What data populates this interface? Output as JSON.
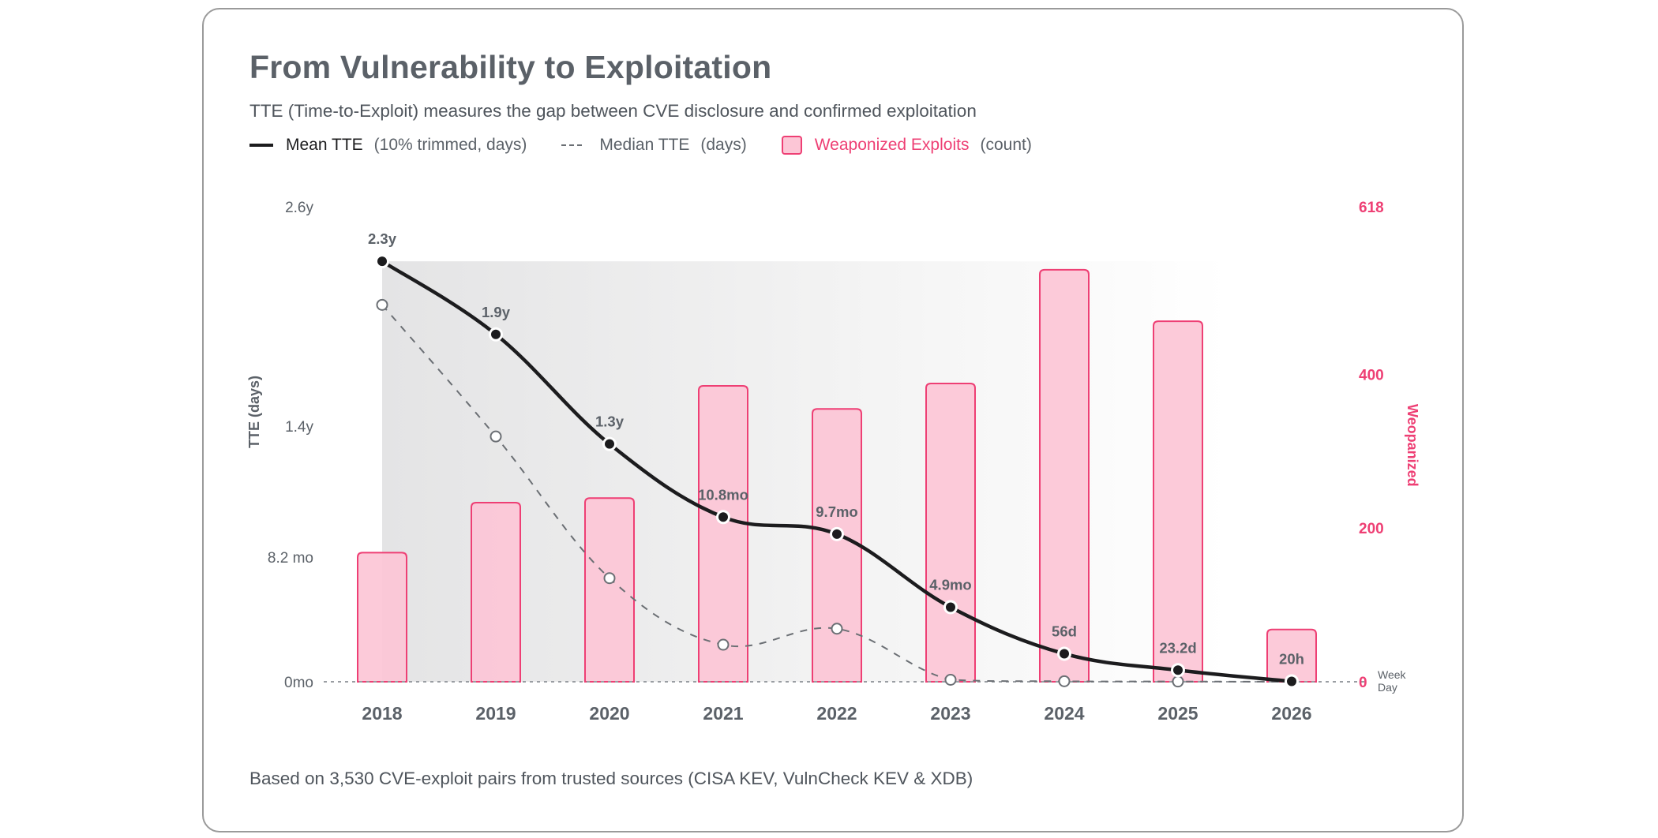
{
  "header": {
    "title": "From Vulnerability to Exploitation",
    "subtitle": "TTE (Time-to-Exploit) measures the gap between CVE disclosure and confirmed exploitation"
  },
  "legend": {
    "mean": {
      "name": "Mean TTE",
      "unit": "(10% trimmed, days)"
    },
    "median": {
      "name": "Median TTE",
      "unit": "(days)"
    },
    "exploits": {
      "name": "Weaponized Exploits",
      "unit": "(count)"
    }
  },
  "footer": "Based on 3,530 CVE-exploit pairs from trusted sources (CISA KEV, VulnCheck KEV & XDB)",
  "colors": {
    "mean_line": "#1c1c1e",
    "median_line": "#6b6f74",
    "bar_fill": "#fcc6d6",
    "bar_stroke": "#ee3f74",
    "accent_pink": "#ee3f74",
    "text_gray": "#5b6168"
  },
  "chart_data": {
    "type": "bar",
    "title": "From Vulnerability to Exploitation",
    "subtitle": "TTE (Time-to-Exploit) measures the gap between CVE disclosure and confirmed exploitation",
    "categories": [
      "2018",
      "2019",
      "2020",
      "2021",
      "2022",
      "2023",
      "2024",
      "2025",
      "2026"
    ],
    "xlabel": "",
    "ylabel": "TTE (days)",
    "y2label": "Weopanized",
    "ylim": [
      0,
      949
    ],
    "y2lim": [
      0,
      618
    ],
    "y_ticks": [
      {
        "label": "2.6y",
        "value": 949
      },
      {
        "label": "1.4y",
        "value": 511
      },
      {
        "label": "8.2 mo",
        "value": 249
      },
      {
        "label": "0mo",
        "value": 0
      }
    ],
    "y2_ticks": [
      {
        "label": "618",
        "value": 618
      },
      {
        "label": "400",
        "value": 400
      },
      {
        "label": "200",
        "value": 200
      },
      {
        "label": "0",
        "value": 0
      }
    ],
    "baseline_note": [
      "Week",
      "Day"
    ],
    "series": [
      {
        "name": "Weaponized Exploits",
        "kind": "bar",
        "axis": "right",
        "values": [
          168,
          233,
          239,
          385,
          355,
          388,
          536,
          469,
          68
        ]
      },
      {
        "name": "Mean TTE (10% trimmed, days)",
        "kind": "line",
        "axis": "left",
        "values": [
          840,
          694,
          475,
          329,
          295,
          149,
          56,
          23.2,
          0.83
        ],
        "labels": [
          "2.3y",
          "1.9y",
          "1.3y",
          "10.8mo",
          "9.7mo",
          "4.9mo",
          "56d",
          "23.2d",
          "20h"
        ]
      },
      {
        "name": "Median TTE (days)",
        "kind": "line",
        "style": "dashed",
        "axis": "left",
        "values": [
          753,
          490,
          207,
          74,
          106,
          4,
          1,
          0.5,
          0
        ]
      }
    ],
    "grid": false,
    "legend_position": "top-left"
  }
}
